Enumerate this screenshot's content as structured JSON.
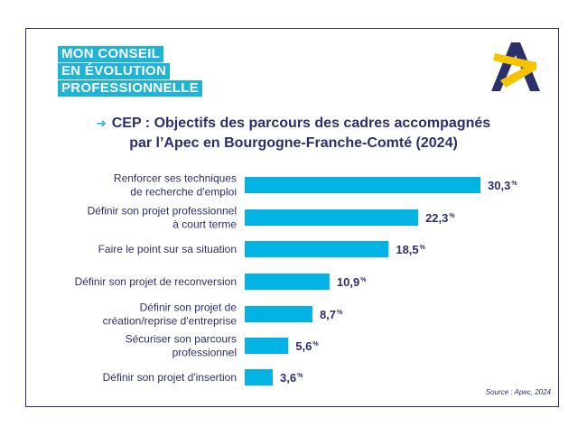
{
  "badge": {
    "lines": [
      "Mon conseil",
      "en évolution",
      "professionnelle"
    ]
  },
  "title": {
    "arrow": "➔",
    "line1": "CEP : Objectifs des parcours des cadres accompagnés",
    "line2": "par l’Apec en Bourgogne-Franche-Comté (2024)"
  },
  "source": "Source : Apec, 2024",
  "colors": {
    "bar": "#00b3e3",
    "text": "#2d2f6b",
    "badge": "#1fb4d6",
    "logo_navy": "#2d2f6b",
    "logo_yellow": "#f5c400"
  },
  "chart_data": {
    "type": "bar",
    "orientation": "horizontal",
    "title": "CEP : Objectifs des parcours des cadres accompagnés par l’Apec en Bourgogne-Franche-Comté (2024)",
    "unit": "%",
    "categories": [
      [
        "Renforcer ses techniques",
        "de recherche d'emploi"
      ],
      [
        "Définir son projet professionnel",
        "à court terme"
      ],
      [
        "Faire le point sur sa situation"
      ],
      [
        "Définir son projet de reconversion"
      ],
      [
        "Définir son projet de",
        "création/reprise d'entreprise"
      ],
      [
        "Sécuriser son parcours",
        "professionnel"
      ],
      [
        "Définir son projet d'insertion"
      ]
    ],
    "values": [
      30.3,
      22.3,
      18.5,
      10.9,
      8.7,
      5.6,
      3.6
    ],
    "value_labels": [
      "30,3",
      "22,3",
      "18,5",
      "10,9",
      "8,7",
      "5,6",
      "3,6"
    ],
    "xlim": [
      0,
      30.3
    ],
    "grid": false,
    "legend": "none"
  }
}
